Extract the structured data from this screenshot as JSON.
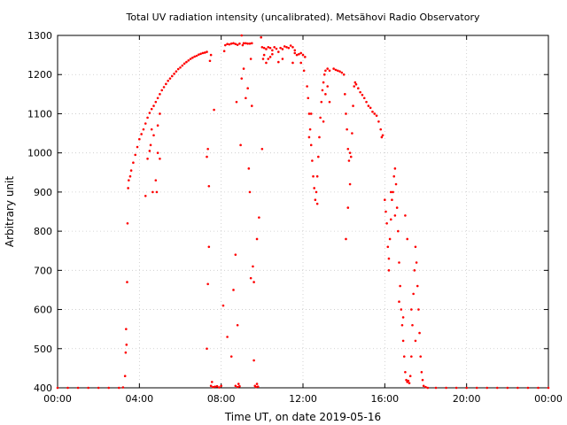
{
  "chart_data": {
    "type": "scatter",
    "title": "Total UV radiation intensity (uncalibrated). Metsähovi Radio Observatory",
    "xlabel": "Time UT, on date 2019-05-16",
    "ylabel": "Arbitrary unit",
    "xlim": [
      0,
      24
    ],
    "ylim": [
      400,
      1300
    ],
    "grid": true,
    "marker_color": "#ff0000",
    "x_ticks": [
      {
        "value": 0,
        "label": "00:00"
      },
      {
        "value": 4,
        "label": "04:00"
      },
      {
        "value": 8,
        "label": "08:00"
      },
      {
        "value": 12,
        "label": "12:00"
      },
      {
        "value": 16,
        "label": "16:00"
      },
      {
        "value": 20,
        "label": "20:00"
      },
      {
        "value": 24,
        "label": "00:00"
      }
    ],
    "y_ticks": [
      400,
      500,
      600,
      700,
      800,
      900,
      1000,
      1100,
      1200,
      1300
    ],
    "series": [
      {
        "points": [
          [
            0.0,
            400
          ],
          [
            0.5,
            400
          ],
          [
            1.0,
            400
          ],
          [
            1.5,
            400
          ],
          [
            2.0,
            400
          ],
          [
            2.5,
            400
          ],
          [
            3.0,
            400
          ],
          [
            3.2,
            401
          ],
          [
            3.3,
            430
          ],
          [
            3.33,
            490
          ],
          [
            3.35,
            550
          ],
          [
            3.37,
            510
          ],
          [
            3.4,
            670
          ],
          [
            3.42,
            820
          ],
          [
            3.45,
            910
          ],
          [
            3.48,
            930
          ],
          [
            3.55,
            940
          ],
          [
            3.6,
            955
          ],
          [
            3.7,
            975
          ],
          [
            3.8,
            995
          ],
          [
            3.9,
            1015
          ],
          [
            4.0,
            1035
          ],
          [
            4.1,
            1048
          ],
          [
            4.2,
            1060
          ],
          [
            4.3,
            1075
          ],
          [
            4.4,
            1090
          ],
          [
            4.5,
            1102
          ],
          [
            4.6,
            1112
          ],
          [
            4.7,
            1120
          ],
          [
            4.8,
            1130
          ],
          [
            4.9,
            1140
          ],
          [
            5.0,
            1150
          ],
          [
            5.1,
            1160
          ],
          [
            5.2,
            1168
          ],
          [
            5.3,
            1176
          ],
          [
            5.4,
            1184
          ],
          [
            5.5,
            1190
          ],
          [
            5.6,
            1196
          ],
          [
            5.7,
            1202
          ],
          [
            5.8,
            1208
          ],
          [
            5.9,
            1214
          ],
          [
            6.0,
            1218
          ],
          [
            6.1,
            1223
          ],
          [
            6.2,
            1228
          ],
          [
            6.3,
            1232
          ],
          [
            6.4,
            1236
          ],
          [
            6.5,
            1240
          ],
          [
            6.6,
            1243
          ],
          [
            6.7,
            1246
          ],
          [
            6.8,
            1248
          ],
          [
            6.9,
            1251
          ],
          [
            7.0,
            1253
          ],
          [
            7.1,
            1255
          ],
          [
            7.2,
            1256
          ],
          [
            7.3,
            1258
          ],
          [
            4.4,
            985
          ],
          [
            4.5,
            1005
          ],
          [
            4.6,
            1060
          ],
          [
            4.7,
            1045
          ],
          [
            4.55,
            1020
          ],
          [
            4.8,
            930
          ],
          [
            4.9,
            1000
          ],
          [
            5.0,
            985
          ],
          [
            4.3,
            890
          ],
          [
            4.65,
            900
          ],
          [
            4.85,
            900
          ],
          [
            4.9,
            1070
          ],
          [
            5.0,
            1100
          ],
          [
            7.3,
            990
          ],
          [
            7.35,
            1010
          ],
          [
            7.4,
            915
          ],
          [
            7.45,
            1235
          ],
          [
            7.5,
            1250
          ],
          [
            7.4,
            760
          ],
          [
            7.35,
            665
          ],
          [
            7.3,
            500
          ],
          [
            7.5,
            405
          ],
          [
            7.55,
            415
          ],
          [
            7.6,
            402
          ],
          [
            7.7,
            403
          ],
          [
            7.8,
            404
          ],
          [
            7.9,
            401
          ],
          [
            8.0,
            405
          ],
          [
            7.65,
            1110
          ],
          [
            8.2,
            1275
          ],
          [
            8.3,
            1278
          ],
          [
            8.4,
            1277
          ],
          [
            8.5,
            1279
          ],
          [
            8.6,
            1280
          ],
          [
            8.7,
            1278
          ],
          [
            8.8,
            1276
          ],
          [
            8.9,
            1279
          ],
          [
            8.15,
            1260
          ],
          [
            8.1,
            610
          ],
          [
            8.3,
            530
          ],
          [
            8.5,
            480
          ],
          [
            8.6,
            650
          ],
          [
            8.7,
            740
          ],
          [
            8.75,
            1130
          ],
          [
            8.8,
            560
          ],
          [
            8.7,
            405
          ],
          [
            8.8,
            402
          ],
          [
            8.85,
            410
          ],
          [
            8.9,
            404
          ],
          [
            8.95,
            1020
          ],
          [
            9.0,
            1300
          ],
          [
            9.05,
            1275
          ],
          [
            9.1,
            1280
          ],
          [
            9.2,
            1280
          ],
          [
            9.3,
            1279
          ],
          [
            9.4,
            1279
          ],
          [
            9.45,
            1240
          ],
          [
            9.5,
            1280
          ],
          [
            9.0,
            1190
          ],
          [
            9.1,
            1215
          ],
          [
            9.2,
            1140
          ],
          [
            9.3,
            1165
          ],
          [
            9.35,
            960
          ],
          [
            9.4,
            900
          ],
          [
            9.45,
            680
          ],
          [
            9.5,
            1120
          ],
          [
            9.55,
            710
          ],
          [
            9.6,
            470
          ],
          [
            9.6,
            670
          ],
          [
            9.65,
            405
          ],
          [
            9.7,
            402
          ],
          [
            9.75,
            410
          ],
          [
            9.8,
            403
          ],
          [
            9.85,
            835
          ],
          [
            9.75,
            780
          ],
          [
            9.95,
            1295
          ],
          [
            10.0,
            1270
          ],
          [
            10.1,
            1268
          ],
          [
            10.2,
            1265
          ],
          [
            10.3,
            1270
          ],
          [
            10.4,
            1268
          ],
          [
            10.5,
            1262
          ],
          [
            10.6,
            1270
          ],
          [
            10.7,
            1266
          ],
          [
            10.8,
            1258
          ],
          [
            10.9,
            1268
          ],
          [
            11.0,
            1265
          ],
          [
            11.1,
            1272
          ],
          [
            11.2,
            1270
          ],
          [
            11.3,
            1268
          ],
          [
            11.4,
            1274
          ],
          [
            11.5,
            1270
          ],
          [
            11.6,
            1262
          ],
          [
            11.7,
            1250
          ],
          [
            11.8,
            1252
          ],
          [
            11.9,
            1255
          ],
          [
            12.0,
            1250
          ],
          [
            12.1,
            1245
          ],
          [
            10.0,
            1010
          ],
          [
            10.05,
            1240
          ],
          [
            10.1,
            1250
          ],
          [
            10.2,
            1230
          ],
          [
            10.3,
            1240
          ],
          [
            10.4,
            1245
          ],
          [
            10.5,
            1252
          ],
          [
            10.8,
            1232
          ],
          [
            11.0,
            1240
          ],
          [
            11.5,
            1230
          ],
          [
            11.6,
            1255
          ],
          [
            11.9,
            1230
          ],
          [
            12.05,
            1210
          ],
          [
            12.2,
            1170
          ],
          [
            12.25,
            1140
          ],
          [
            12.3,
            1100
          ],
          [
            12.35,
            1060
          ],
          [
            12.4,
            1020
          ],
          [
            12.45,
            980
          ],
          [
            12.5,
            940
          ],
          [
            12.55,
            910
          ],
          [
            12.6,
            880
          ],
          [
            12.65,
            900
          ],
          [
            12.7,
            940
          ],
          [
            12.75,
            990
          ],
          [
            12.8,
            1040
          ],
          [
            12.85,
            1090
          ],
          [
            12.9,
            1130
          ],
          [
            12.95,
            1160
          ],
          [
            13.0,
            1180
          ],
          [
            13.05,
            1200
          ],
          [
            13.1,
            1210
          ],
          [
            13.2,
            1215
          ],
          [
            13.3,
            1210
          ],
          [
            13.0,
            1080
          ],
          [
            13.1,
            1150
          ],
          [
            13.2,
            1170
          ],
          [
            13.3,
            1130
          ],
          [
            12.7,
            870
          ],
          [
            12.3,
            1040
          ],
          [
            12.4,
            1100
          ],
          [
            13.5,
            1215
          ],
          [
            13.6,
            1212
          ],
          [
            13.7,
            1210
          ],
          [
            13.8,
            1208
          ],
          [
            13.9,
            1205
          ],
          [
            14.0,
            1200
          ],
          [
            14.05,
            1150
          ],
          [
            14.1,
            1100
          ],
          [
            14.15,
            1060
          ],
          [
            14.2,
            1010
          ],
          [
            14.25,
            980
          ],
          [
            14.3,
            920
          ],
          [
            14.35,
            990
          ],
          [
            14.4,
            1050
          ],
          [
            14.45,
            1120
          ],
          [
            14.5,
            1170
          ],
          [
            14.55,
            1180
          ],
          [
            14.6,
            1175
          ],
          [
            14.7,
            1165
          ],
          [
            14.8,
            1155
          ],
          [
            14.9,
            1148
          ],
          [
            15.0,
            1140
          ],
          [
            15.1,
            1130
          ],
          [
            15.2,
            1120
          ],
          [
            15.3,
            1115
          ],
          [
            15.4,
            1105
          ],
          [
            15.5,
            1100
          ],
          [
            15.6,
            1095
          ],
          [
            15.7,
            1080
          ],
          [
            15.8,
            1060
          ],
          [
            15.85,
            1040
          ],
          [
            15.9,
            1045
          ],
          [
            14.1,
            780
          ],
          [
            14.2,
            860
          ],
          [
            14.3,
            1000
          ],
          [
            16.0,
            880
          ],
          [
            16.05,
            850
          ],
          [
            16.1,
            820
          ],
          [
            16.15,
            760
          ],
          [
            16.2,
            730
          ],
          [
            16.25,
            780
          ],
          [
            16.3,
            830
          ],
          [
            16.35,
            880
          ],
          [
            16.4,
            900
          ],
          [
            16.45,
            940
          ],
          [
            16.5,
            960
          ],
          [
            16.55,
            920
          ],
          [
            16.6,
            860
          ],
          [
            16.65,
            800
          ],
          [
            16.7,
            720
          ],
          [
            16.75,
            660
          ],
          [
            16.8,
            600
          ],
          [
            16.85,
            560
          ],
          [
            16.9,
            520
          ],
          [
            16.95,
            480
          ],
          [
            17.0,
            440
          ],
          [
            17.05,
            420
          ],
          [
            17.1,
            415
          ],
          [
            17.15,
            418
          ],
          [
            17.2,
            412
          ],
          [
            17.25,
            430
          ],
          [
            17.3,
            480
          ],
          [
            17.35,
            560
          ],
          [
            17.4,
            640
          ],
          [
            17.45,
            700
          ],
          [
            17.5,
            760
          ],
          [
            17.55,
            720
          ],
          [
            17.6,
            660
          ],
          [
            17.65,
            600
          ],
          [
            17.7,
            540
          ],
          [
            17.75,
            480
          ],
          [
            17.8,
            440
          ],
          [
            17.85,
            420
          ],
          [
            17.9,
            405
          ],
          [
            18.0,
            402
          ],
          [
            16.2,
            700
          ],
          [
            16.3,
            900
          ],
          [
            16.5,
            840
          ],
          [
            16.7,
            620
          ],
          [
            16.9,
            580
          ],
          [
            17.0,
            840
          ],
          [
            17.1,
            780
          ],
          [
            17.3,
            600
          ],
          [
            17.5,
            520
          ],
          [
            18.1,
            400
          ],
          [
            18.5,
            400
          ],
          [
            19.0,
            400
          ],
          [
            19.5,
            400
          ],
          [
            20.0,
            400
          ],
          [
            20.5,
            400
          ],
          [
            21.0,
            400
          ],
          [
            21.5,
            400
          ],
          [
            22.0,
            400
          ],
          [
            22.5,
            400
          ],
          [
            23.0,
            400
          ],
          [
            23.5,
            400
          ],
          [
            24.0,
            400
          ]
        ]
      }
    ]
  }
}
